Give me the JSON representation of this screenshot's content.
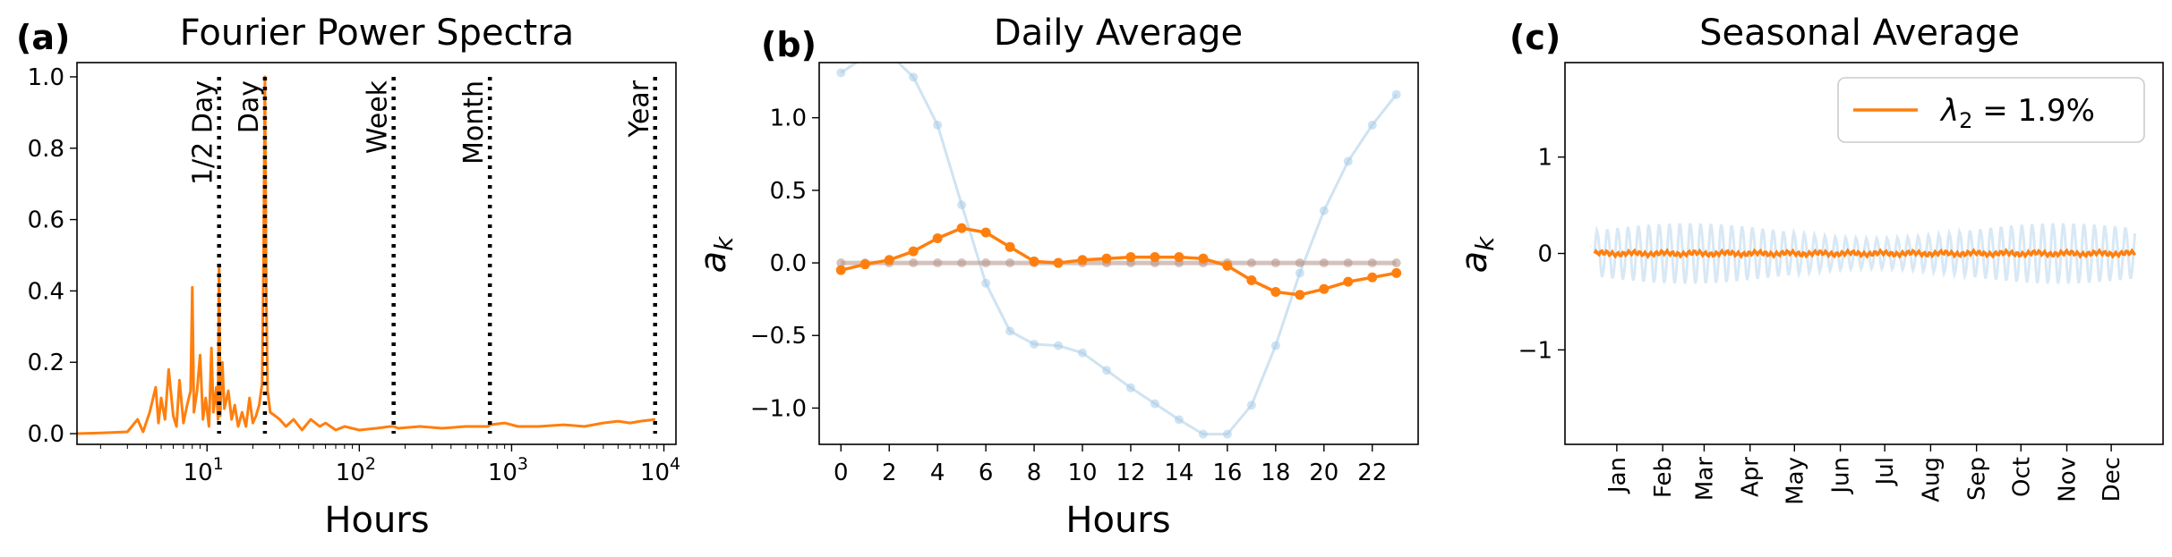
{
  "colors": {
    "main": "#ff7f0e",
    "faint_blue": "#a8cce8",
    "faint_brown": "#b9998f",
    "vline": "#000000"
  },
  "chart_data": [
    {
      "type": "line",
      "panel_label": "(a)",
      "title": "Fourier Power Spectra",
      "xlabel": "Hours",
      "ylabel": "",
      "xscale": "log",
      "xlim": [
        1.4,
        12000
      ],
      "ylim": [
        -0.03,
        1.04
      ],
      "xticks": [
        {
          "value": 10,
          "base": "10",
          "exp": "1"
        },
        {
          "value": 100,
          "base": "10",
          "exp": "2"
        },
        {
          "value": 1000,
          "base": "10",
          "exp": "3"
        },
        {
          "value": 10000,
          "base": "10",
          "exp": "4"
        }
      ],
      "yticks": [
        "0.0",
        "0.2",
        "0.4",
        "0.6",
        "0.8",
        "1.0"
      ],
      "ytick_values": [
        0,
        0.2,
        0.4,
        0.6,
        0.8,
        1.0
      ],
      "reference_lines": [
        {
          "label": "1/2 Day",
          "x": 12
        },
        {
          "label": "Day",
          "x": 24
        },
        {
          "label": "Week",
          "x": 168
        },
        {
          "label": "Month",
          "x": 720
        },
        {
          "label": "Year",
          "x": 8760
        }
      ],
      "series": [
        {
          "x": [
            1.4,
            2,
            3,
            3.5,
            3.8,
            4.2,
            4.6,
            4.8,
            5.0,
            5.3,
            5.6,
            6.0,
            6.3,
            6.6,
            7.0,
            7.4,
            7.8,
            8.0,
            8.2,
            8.6,
            9.0,
            9.4,
            9.8,
            10.3,
            10.7,
            11.0,
            11.5,
            11.8,
            12.0,
            12.2,
            12.6,
            13.0,
            13.8,
            14.5,
            15.2,
            16.0,
            17.0,
            18.0,
            19.0,
            20.0,
            21.0,
            22.0,
            23.0,
            23.5,
            24.0,
            24.5,
            25.0,
            26.0,
            28.0,
            30.0,
            33.0,
            37.0,
            42.0,
            48.0,
            55.0,
            60.0,
            70.0,
            80.0,
            100.0,
            130.0,
            160.0,
            168.0,
            180.0,
            250.0,
            350.0,
            500.0,
            700.0,
            720.0,
            900.0,
            1100.0,
            1500.0,
            2200.0,
            3000.0,
            4000.0,
            5000.0,
            6000.0,
            7000.0,
            8760.0
          ],
          "y": [
            0.0,
            0.002,
            0.005,
            0.04,
            0.005,
            0.06,
            0.13,
            0.03,
            0.1,
            0.04,
            0.18,
            0.05,
            0.02,
            0.15,
            0.03,
            0.08,
            0.12,
            0.41,
            0.06,
            0.12,
            0.22,
            0.04,
            0.1,
            0.02,
            0.24,
            0.06,
            0.13,
            0.04,
            0.47,
            0.05,
            0.2,
            0.07,
            0.12,
            0.04,
            0.08,
            0.02,
            0.06,
            0.02,
            0.1,
            0.03,
            0.05,
            0.08,
            0.14,
            0.5,
            1.0,
            0.4,
            0.12,
            0.06,
            0.05,
            0.04,
            0.02,
            0.04,
            0.01,
            0.04,
            0.02,
            0.03,
            0.01,
            0.02,
            0.01,
            0.015,
            0.02,
            0.02,
            0.015,
            0.02,
            0.015,
            0.02,
            0.02,
            0.025,
            0.03,
            0.02,
            0.02,
            0.025,
            0.02,
            0.03,
            0.035,
            0.03,
            0.035,
            0.04
          ]
        }
      ]
    },
    {
      "type": "line",
      "panel_label": "(b)",
      "title": "Daily Average",
      "xlabel": "Hours",
      "ylabel": "a_k",
      "ylabel_text": "a",
      "ylabel_sub": "k",
      "xlim": [
        -0.9,
        23.9
      ],
      "ylim": [
        -1.25,
        1.38
      ],
      "xticks": [
        "0",
        "2",
        "4",
        "6",
        "8",
        "10",
        "12",
        "14",
        "16",
        "18",
        "20",
        "22"
      ],
      "xtick_values": [
        0,
        2,
        4,
        6,
        8,
        10,
        12,
        14,
        16,
        18,
        20,
        22
      ],
      "yticks": [
        "−1.0",
        "−0.5",
        "0.0",
        "0.5",
        "1.0"
      ],
      "ytick_values": [
        -1.0,
        -0.5,
        0.0,
        0.5,
        1.0
      ],
      "x": [
        0,
        1,
        2,
        3,
        4,
        5,
        6,
        7,
        8,
        9,
        10,
        11,
        12,
        13,
        14,
        15,
        16,
        17,
        18,
        19,
        20,
        21,
        22,
        23
      ],
      "series": [
        {
          "style": "faint_blue",
          "values": [
            1.31,
            1.42,
            1.44,
            1.28,
            0.95,
            0.4,
            -0.14,
            -0.47,
            -0.56,
            -0.57,
            -0.62,
            -0.74,
            -0.86,
            -0.97,
            -1.08,
            -1.18,
            -1.18,
            -0.98,
            -0.57,
            -0.07,
            0.36,
            0.7,
            0.95,
            1.16
          ]
        },
        {
          "style": "faint_brown",
          "values": [
            0,
            0,
            0,
            0,
            0,
            0,
            0,
            0,
            0,
            0,
            0,
            0,
            0,
            0,
            0,
            0,
            0,
            0,
            0,
            0,
            0,
            0,
            0,
            0
          ]
        },
        {
          "style": "main",
          "values": [
            -0.05,
            -0.01,
            0.02,
            0.08,
            0.17,
            0.24,
            0.21,
            0.11,
            0.01,
            0.0,
            0.02,
            0.03,
            0.04,
            0.04,
            0.04,
            0.03,
            -0.02,
            -0.12,
            -0.2,
            -0.22,
            -0.18,
            -0.13,
            -0.1,
            -0.07
          ]
        }
      ]
    },
    {
      "type": "line",
      "panel_label": "(c)",
      "title": "Seasonal Average",
      "xlabel": "",
      "ylabel": "a_k",
      "ylabel_text": "a",
      "ylabel_sub": "k",
      "xlim": [
        -20,
        384
      ],
      "ylim": [
        -1.98,
        1.98
      ],
      "xticks": [
        "Jan",
        "Feb",
        "Mar",
        "Apr",
        "May",
        "Jun",
        "Jul",
        "Aug",
        "Sep",
        "Oct",
        "Nov",
        "Dec"
      ],
      "xtick_values": [
        15,
        46,
        74,
        105,
        135,
        166,
        196,
        227,
        258,
        288,
        319,
        349
      ],
      "yticks": [
        "−1",
        "0",
        "1"
      ],
      "ytick_values": [
        -1,
        0,
        1
      ],
      "legend": {
        "label": "λ",
        "sub": "2",
        "rest": " = 1.9%",
        "placement": "upper right"
      },
      "series": [
        {
          "style": "faint_blue",
          "x_range": [
            0,
            365
          ],
          "amplitude": 0.32,
          "period_days": 7,
          "center": 0
        },
        {
          "style": "main",
          "name": "λ2 = 1.9%",
          "x_range": [
            0,
            365
          ],
          "amplitude": 0.02,
          "center": 0
        }
      ]
    }
  ]
}
